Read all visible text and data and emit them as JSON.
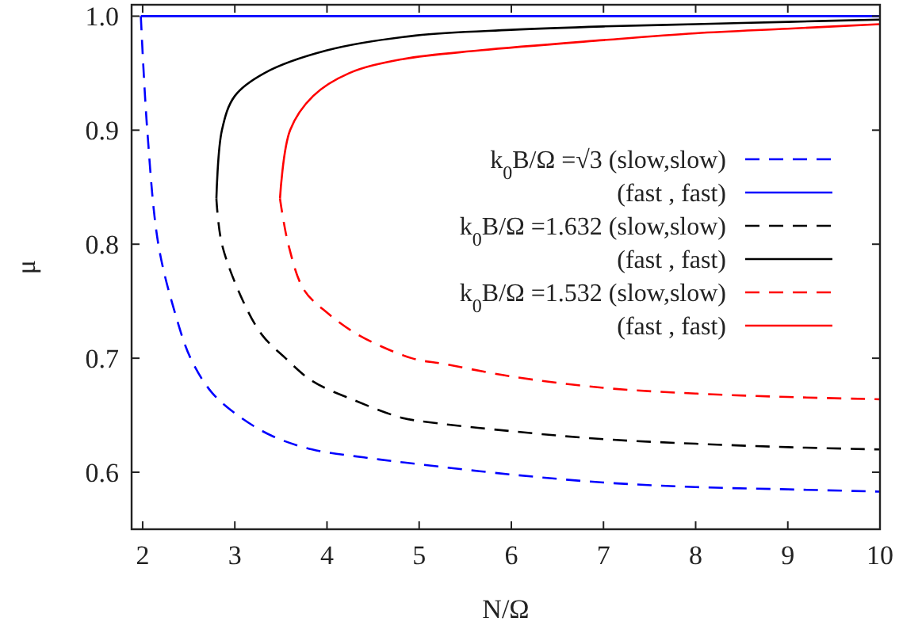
{
  "chart_data": {
    "type": "line",
    "xlabel": "N/Ω",
    "ylabel": "μ",
    "xlim": [
      1.88,
      10
    ],
    "ylim": [
      0.55,
      1.01
    ],
    "xticks": [
      2,
      3,
      4,
      5,
      6,
      7,
      8,
      9,
      10
    ],
    "yticks": [
      {
        "value": 0.6,
        "label": "0.6"
      },
      {
        "value": 0.7,
        "label": "0.7"
      },
      {
        "value": 0.8,
        "label": "0.8"
      },
      {
        "value": 0.9,
        "label": "0.9"
      },
      {
        "value": 1.0,
        "label": "1.0"
      }
    ],
    "legend": "right",
    "grid": false,
    "series": [
      {
        "name": "k$_{0}$B/Ω =√3 (slow,slow)",
        "color": "#0000ff",
        "line_style": "dashed",
        "x": [
          1.98,
          2.05,
          2.17,
          2.35,
          2.52,
          2.75,
          3.03,
          3.4,
          3.84,
          4.4,
          5,
          6,
          7,
          8,
          9,
          10
        ],
        "values": [
          1.0,
          0.9,
          0.8,
          0.74,
          0.7,
          0.67,
          0.65,
          0.632,
          0.62,
          0.613,
          0.607,
          0.598,
          0.591,
          0.587,
          0.585,
          0.583
        ]
      },
      {
        "name": "(fast , fast)",
        "color": "#0000ff",
        "line_style": "solid",
        "x": [
          1.98,
          10
        ],
        "values": [
          1.0,
          1.0
        ]
      },
      {
        "name": "k$_{0}$B/Ω =1.632 (slow,slow)",
        "color": "#000000",
        "line_style": "dashed",
        "x": [
          2.8,
          2.86,
          3.09,
          3.3,
          3.55,
          3.84,
          4.3,
          4.8,
          5,
          6,
          7,
          8,
          9,
          10
        ],
        "values": [
          0.84,
          0.8,
          0.75,
          0.72,
          0.7,
          0.68,
          0.663,
          0.648,
          0.645,
          0.636,
          0.629,
          0.625,
          0.622,
          0.62
        ]
      },
      {
        "name": "(fast , fast)",
        "color": "#000000",
        "line_style": "solid",
        "x": [
          2.8,
          2.86,
          3.0,
          3.32,
          4.0,
          4.96,
          6,
          7,
          8,
          9,
          10
        ],
        "values": [
          0.84,
          0.9,
          0.93,
          0.95,
          0.97,
          0.983,
          0.988,
          0.991,
          0.993,
          0.995,
          0.997
        ]
      },
      {
        "name": "k$_{0}$B/Ω =1.532 (slow,slow)",
        "color": "#ff0000",
        "line_style": "dashed",
        "x": [
          3.49,
          3.58,
          3.75,
          4.0,
          4.35,
          4.92,
          5.27,
          6,
          7,
          8,
          9,
          10
        ],
        "values": [
          0.84,
          0.8,
          0.76,
          0.74,
          0.72,
          0.7,
          0.695,
          0.684,
          0.674,
          0.669,
          0.666,
          0.664
        ]
      },
      {
        "name": "(fast , fast)",
        "color": "#ff0000",
        "line_style": "solid",
        "x": [
          3.49,
          3.6,
          3.85,
          4.24,
          4.8,
          5.66,
          7,
          8,
          9,
          10
        ],
        "values": [
          0.84,
          0.9,
          0.93,
          0.95,
          0.962,
          0.97,
          0.979,
          0.985,
          0.989,
          0.993
        ]
      }
    ]
  }
}
